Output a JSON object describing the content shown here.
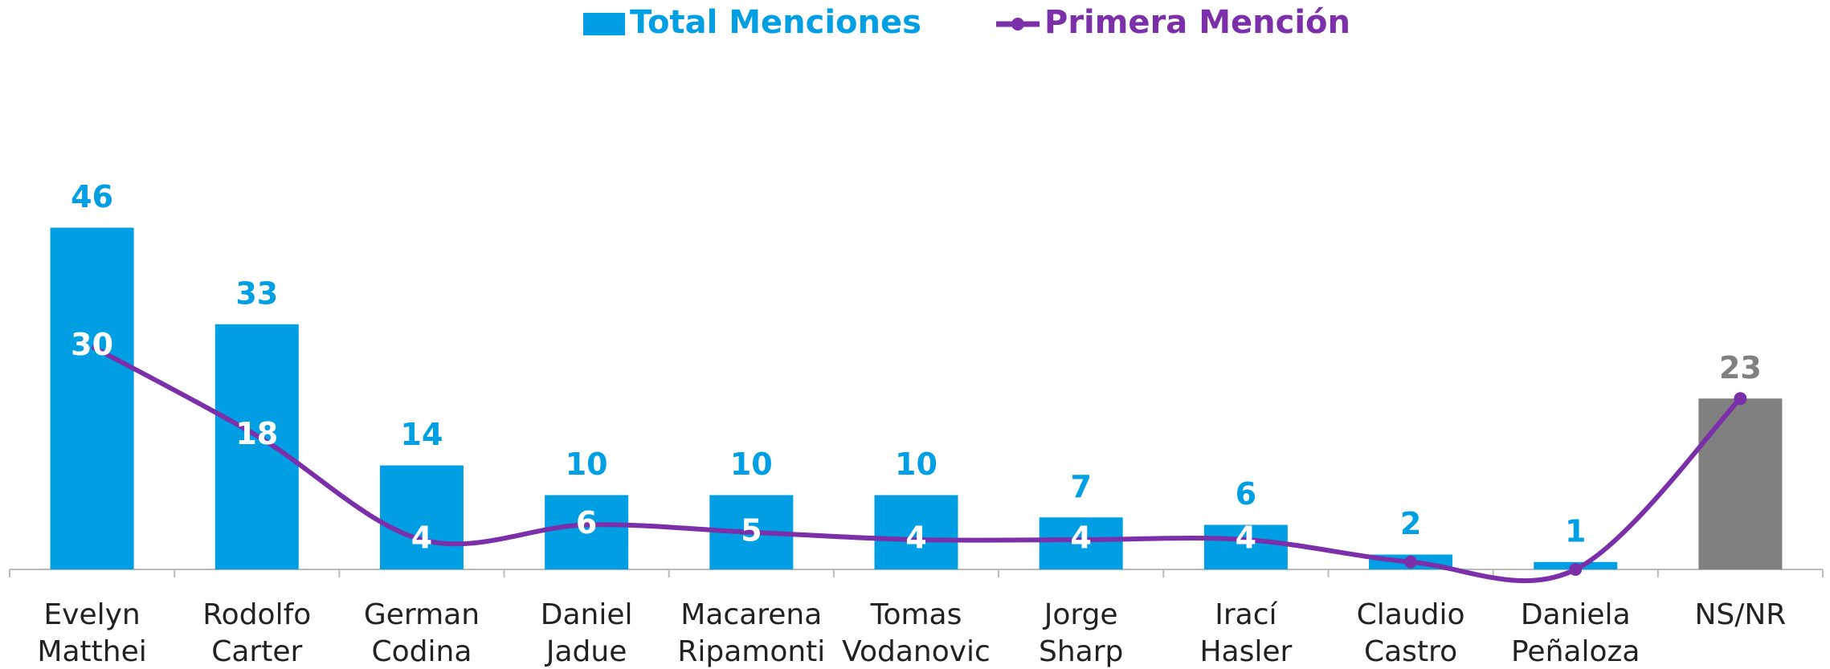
{
  "chart_data": {
    "type": "bar_line",
    "categories": [
      [
        "Evelyn",
        "Matthei"
      ],
      [
        "Rodolfo",
        "Carter"
      ],
      [
        "German",
        "Codina"
      ],
      [
        "Daniel",
        "Jadue"
      ],
      [
        "Macarena",
        "Ripamonti"
      ],
      [
        "Tomas",
        "Vodanovic"
      ],
      [
        "Jorge",
        "Sharp"
      ],
      [
        "Irací",
        "Hasler"
      ],
      [
        "Claudio",
        "Castro"
      ],
      [
        "Daniela",
        "Peñaloza"
      ],
      [
        "NS/NR"
      ]
    ],
    "ylim": [
      0,
      60
    ],
    "series": [
      {
        "name": "Total Menciones",
        "type": "bar",
        "color": "#009fe3",
        "colors": [
          "#009fe3",
          "#009fe3",
          "#009fe3",
          "#009fe3",
          "#009fe3",
          "#009fe3",
          "#009fe3",
          "#009fe3",
          "#009fe3",
          "#009fe3",
          "#808080"
        ],
        "values": [
          46,
          33,
          14,
          10,
          10,
          10,
          7,
          6,
          2,
          1,
          23
        ]
      },
      {
        "name": "Primera Mención",
        "type": "line",
        "color": "#7b2fa8",
        "values": [
          30,
          18,
          4,
          6,
          5,
          4,
          4,
          4,
          1,
          0,
          23
        ],
        "value_labels": [
          "30",
          "18",
          "4",
          "6",
          "5",
          "4",
          "4",
          "4",
          null,
          null,
          null
        ]
      }
    ]
  }
}
